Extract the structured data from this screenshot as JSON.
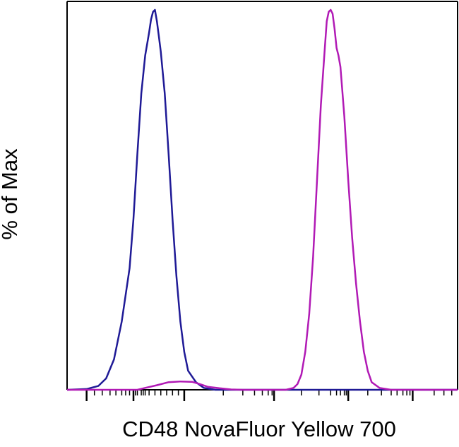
{
  "chart_data": {
    "type": "line",
    "xlabel": "CD48 NovaFluor Yellow 700",
    "ylabel": "% of Max",
    "xscale": "biexponential",
    "x_tick_labels": false,
    "grid": false,
    "legend": "none",
    "ylim": [
      0,
      100
    ],
    "series": [
      {
        "color": "#1f1a96",
        "points": [
          [
            0.0,
            0
          ],
          [
            0.05,
            0.2
          ],
          [
            0.08,
            1
          ],
          [
            0.1,
            3
          ],
          [
            0.12,
            8
          ],
          [
            0.14,
            18
          ],
          [
            0.16,
            32
          ],
          [
            0.17,
            45
          ],
          [
            0.18,
            62
          ],
          [
            0.19,
            78
          ],
          [
            0.2,
            88
          ],
          [
            0.21,
            94
          ],
          [
            0.215,
            97.5
          ],
          [
            0.22,
            99.5
          ],
          [
            0.225,
            100
          ],
          [
            0.23,
            97
          ],
          [
            0.235,
            93
          ],
          [
            0.24,
            89
          ],
          [
            0.25,
            78
          ],
          [
            0.26,
            62
          ],
          [
            0.27,
            45
          ],
          [
            0.28,
            30
          ],
          [
            0.29,
            18
          ],
          [
            0.3,
            10
          ],
          [
            0.31,
            5
          ],
          [
            0.33,
            2
          ],
          [
            0.35,
            0.5
          ],
          [
            0.38,
            0
          ],
          [
            1.0,
            0
          ]
        ]
      },
      {
        "color": "#b11ab5",
        "points": [
          [
            0.0,
            0
          ],
          [
            0.18,
            0
          ],
          [
            0.2,
            0.5
          ],
          [
            0.23,
            1.2
          ],
          [
            0.26,
            2
          ],
          [
            0.29,
            2.2
          ],
          [
            0.32,
            2.1
          ],
          [
            0.34,
            1.5
          ],
          [
            0.36,
            0.8
          ],
          [
            0.39,
            0.4
          ],
          [
            0.42,
            0.1
          ],
          [
            0.45,
            0
          ],
          [
            0.56,
            0
          ],
          [
            0.58,
            0.5
          ],
          [
            0.59,
            1.5
          ],
          [
            0.6,
            4
          ],
          [
            0.61,
            10
          ],
          [
            0.62,
            20
          ],
          [
            0.63,
            35
          ],
          [
            0.64,
            55
          ],
          [
            0.65,
            75
          ],
          [
            0.66,
            90
          ],
          [
            0.665,
            97
          ],
          [
            0.67,
            99.5
          ],
          [
            0.675,
            100
          ],
          [
            0.68,
            99
          ],
          [
            0.685,
            95
          ],
          [
            0.69,
            90
          ],
          [
            0.695,
            88
          ],
          [
            0.7,
            85
          ],
          [
            0.71,
            72
          ],
          [
            0.72,
            55
          ],
          [
            0.73,
            40
          ],
          [
            0.74,
            28
          ],
          [
            0.75,
            18
          ],
          [
            0.76,
            10
          ],
          [
            0.77,
            5
          ],
          [
            0.78,
            2
          ],
          [
            0.8,
            0.5
          ],
          [
            0.83,
            0
          ],
          [
            1.0,
            0
          ]
        ]
      }
    ]
  }
}
